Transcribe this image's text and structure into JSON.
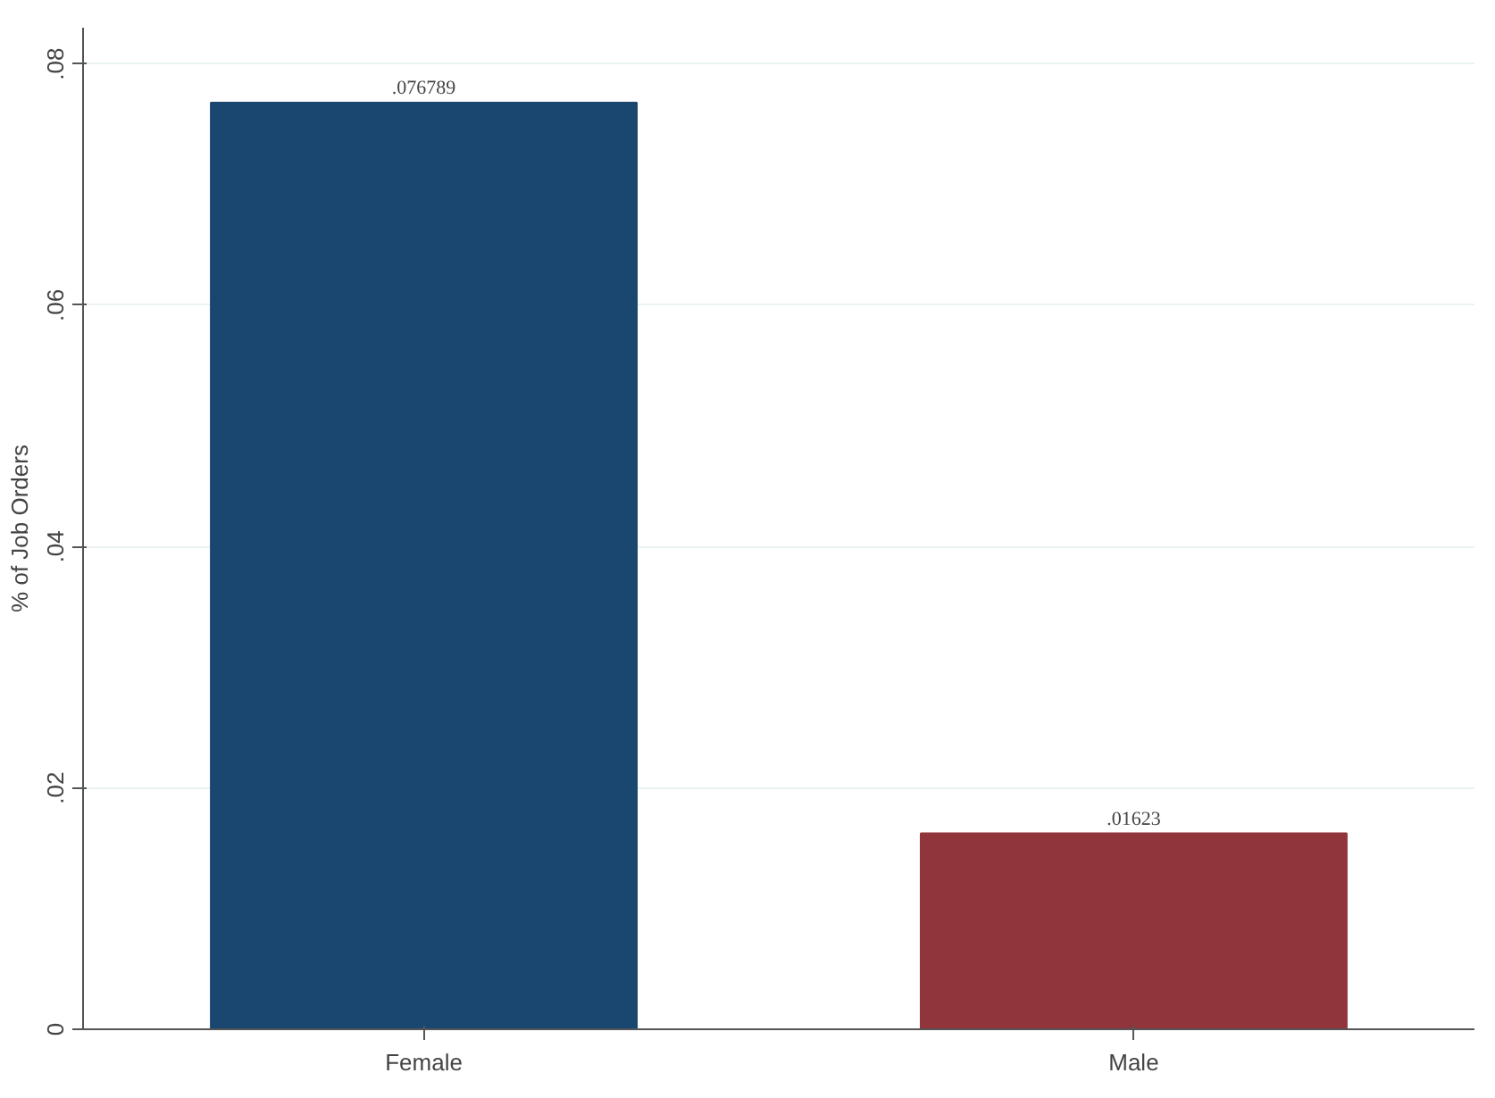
{
  "chart_data": {
    "type": "bar",
    "ylabel": "% of Job Orders",
    "categories": [
      "Female",
      "Male"
    ],
    "values": [
      0.076789,
      0.01623
    ],
    "colors": [
      "#1a476f",
      "#90353b"
    ],
    "value_labels": [
      ".076789",
      ".01623"
    ],
    "ylim": [
      0,
      0.083
    ],
    "yticks": [
      {
        "value": 0,
        "label": "0"
      },
      {
        "value": 0.02,
        "label": ".02"
      },
      {
        "value": 0.04,
        "label": ".04"
      },
      {
        "value": 0.06,
        "label": ".06"
      },
      {
        "value": 0.08,
        "label": ".08"
      }
    ],
    "grid": "y"
  }
}
